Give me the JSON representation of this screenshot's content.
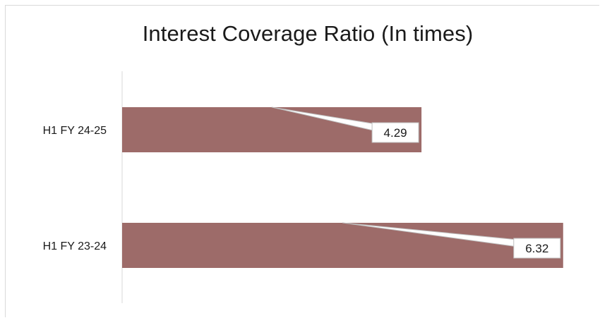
{
  "chart_data": {
    "type": "bar",
    "orientation": "horizontal",
    "title": "Interest Coverage Ratio (In times)",
    "xlabel": "",
    "ylabel": "",
    "categories": [
      "H1 FY 24-25",
      "H1 FY 23-24"
    ],
    "values": [
      4.29,
      6.32
    ],
    "data_labels": [
      "4.29",
      "6.32"
    ],
    "xlim": [
      0,
      7
    ],
    "grid": false,
    "legend": "none",
    "bar_color": "#9d6b69"
  }
}
